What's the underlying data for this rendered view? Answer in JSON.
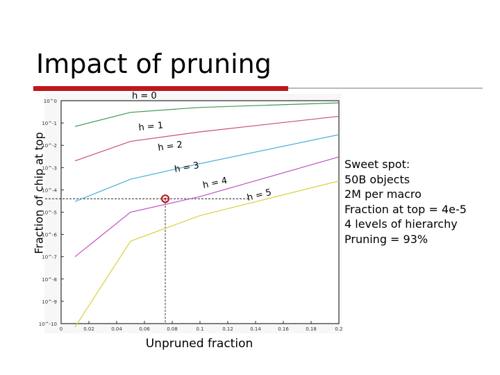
{
  "slide": {
    "title": "Impact of pruning",
    "notes": [
      "Sweet spot:",
      "50B objects",
      "2M per macro",
      "Fraction at top = 4e-5",
      "4 levels of hierarchy",
      "Pruning = 93%"
    ]
  },
  "colors": {
    "title_bar": "#c0161b",
    "h1": "#3a9a4a",
    "h2": "#c8506a",
    "h3": "#4ab0d8",
    "h4": "#c050c0",
    "h5": "#d8d040",
    "marker": "#b02020",
    "guide": "#000000"
  },
  "chart_data": {
    "type": "line",
    "xlabel": "Unpruned fraction",
    "ylabel": "Fraction of chip at top",
    "x_ticks": [
      "0",
      "0.02",
      "0.04",
      "0.06",
      "0.08",
      "0.1",
      "0.12",
      "0.14",
      "0.16",
      "0.18",
      "0.2"
    ],
    "y_ticks": [
      "10^0",
      "10^-1",
      "10^-2",
      "10^-3",
      "10^-4",
      "10^-5",
      "10^-6",
      "10^-7",
      "10^-8",
      "10^-9",
      "10^-10"
    ],
    "xlim": [
      0,
      0.2
    ],
    "y_log_range": [
      -10,
      0
    ],
    "series": [
      {
        "name": "h = 0",
        "x": [],
        "y": []
      },
      {
        "name": "h = 1",
        "x": [
          0.01,
          0.05,
          0.1,
          0.2
        ],
        "y": [
          0.07,
          0.3,
          0.5,
          0.8
        ]
      },
      {
        "name": "h = 2",
        "x": [
          0.01,
          0.05,
          0.1,
          0.2
        ],
        "y": [
          0.002,
          0.015,
          0.04,
          0.2
        ]
      },
      {
        "name": "h = 3",
        "x": [
          0.01,
          0.05,
          0.1,
          0.2
        ],
        "y": [
          3e-05,
          0.0003,
          0.0015,
          0.03
        ]
      },
      {
        "name": "h = 4",
        "x": [
          0.01,
          0.05,
          0.1,
          0.2
        ],
        "y": [
          1e-07,
          1e-05,
          5e-05,
          0.003
        ]
      },
      {
        "name": "h = 5",
        "x": [
          0.01,
          0.05,
          0.1,
          0.2
        ],
        "y": [
          7e-11,
          5e-07,
          7e-06,
          0.00025
        ]
      }
    ],
    "marker": {
      "x": 0.075,
      "y": 4e-05
    },
    "grid": false,
    "legend": "inline labels"
  }
}
